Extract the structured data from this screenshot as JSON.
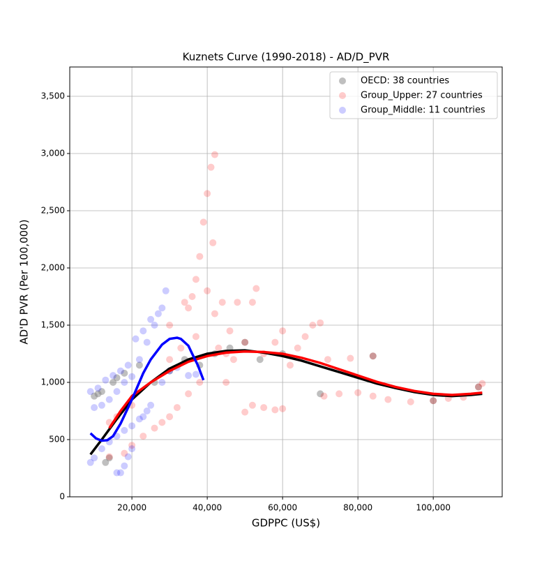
{
  "chart_data": {
    "type": "scatter",
    "title": "Kuznets Curve (1990-2018) - AD/D_PVR",
    "x_label": "GDPPC (US$)",
    "y_label": "AD'D PVR (Per 100,000)",
    "xlim": [
      3500,
      118300
    ],
    "ylim": [
      0,
      3756
    ],
    "xticks": [
      {
        "value": 20000,
        "label": "20,000"
      },
      {
        "value": 40000,
        "label": "40,000"
      },
      {
        "value": 60000,
        "label": "60,000"
      },
      {
        "value": 80000,
        "label": "80,000"
      },
      {
        "value": 100000,
        "label": "100,000"
      }
    ],
    "yticks": [
      0,
      500,
      {
        "value": 1000,
        "label": "1,000"
      },
      {
        "value": 1500,
        "label": "1,500"
      },
      {
        "value": 2000,
        "label": "2,000"
      },
      {
        "value": 2500,
        "label": "2,500"
      },
      {
        "value": 3000,
        "label": "3,000"
      },
      {
        "value": 3500,
        "label": "3,500"
      }
    ],
    "grid": true,
    "legend": "upper-right",
    "series": [
      {
        "name": "OECD: 38 countries",
        "color": "#808080",
        "x": [
          10000,
          11000,
          12000,
          13000,
          14000,
          15000,
          16000,
          18000,
          22000,
          26000,
          30000,
          34000,
          38000,
          42000,
          46000,
          50000,
          54000,
          60000,
          70000,
          84000,
          100000,
          112000
        ],
        "values": [
          880,
          900,
          920,
          300,
          340,
          1000,
          1040,
          1080,
          1150,
          1000,
          1100,
          1200,
          1150,
          1250,
          1300,
          1350,
          1200,
          1250,
          900,
          1230,
          840,
          960
        ]
      },
      {
        "name": "Group_Upper: 27 countries",
        "color": "#ff0000",
        "x": [
          14000,
          16000,
          18000,
          20000,
          14000,
          18000,
          20000,
          23000,
          26000,
          28000,
          30000,
          32000,
          35000,
          35000,
          37000,
          38000,
          39000,
          40000,
          41000,
          42000,
          41500,
          40000,
          36000,
          42000,
          44000,
          46000,
          48000,
          50000,
          52000,
          53000,
          45000,
          47000,
          50000,
          52000,
          55000,
          58000,
          60000,
          55000,
          58000,
          60000,
          62000,
          64000,
          66000,
          68000,
          70000,
          71000,
          72000,
          75000,
          78000,
          80000,
          84000,
          84000,
          88000,
          94000,
          100000,
          104000,
          108000,
          112000,
          113000,
          43000,
          45000,
          38000,
          30000,
          33000,
          30000,
          34000,
          37000
        ],
        "values": [
          650,
          700,
          760,
          800,
          350,
          380,
          450,
          530,
          600,
          650,
          700,
          780,
          900,
          1650,
          1900,
          2100,
          2400,
          2650,
          2880,
          2990,
          2220,
          1800,
          1750,
          1600,
          1700,
          1450,
          1700,
          1350,
          1700,
          1820,
          1000,
          1200,
          740,
          800,
          780,
          760,
          770,
          1250,
          1350,
          1450,
          1150,
          1300,
          1400,
          1500,
          1520,
          880,
          1200,
          900,
          1210,
          910,
          1230,
          880,
          850,
          830,
          840,
          860,
          870,
          960,
          990,
          1300,
          1250,
          1000,
          1200,
          1300,
          1500,
          1700,
          1400
        ]
      },
      {
        "name": "Group_Middle: 11 countries",
        "color": "#0000ff",
        "x": [
          9000,
          11000,
          13000,
          15000,
          17000,
          19000,
          10000,
          12000,
          14000,
          16000,
          18000,
          20000,
          22000,
          24000,
          26000,
          28000,
          29000,
          21000,
          23000,
          25000,
          27000,
          9000,
          10000,
          12000,
          14000,
          16000,
          18000,
          20000,
          22000,
          24000,
          16000,
          17000,
          18000,
          19000,
          20000,
          30000,
          32000,
          35000,
          37000,
          28000,
          25000,
          23000
        ],
        "values": [
          920,
          950,
          1020,
          1060,
          1100,
          1150,
          780,
          800,
          850,
          920,
          1000,
          1050,
          1200,
          1350,
          1500,
          1650,
          1800,
          1380,
          1450,
          1550,
          1600,
          300,
          340,
          420,
          480,
          530,
          580,
          620,
          680,
          750,
          210,
          210,
          270,
          350,
          420,
          1100,
          1130,
          1060,
          1070,
          1000,
          800,
          700
        ]
      }
    ],
    "fits": [
      {
        "color": "#000000",
        "x": [
          9000,
          12000,
          16000,
          20000,
          25000,
          30000,
          35000,
          40000,
          45000,
          50000,
          55000,
          60000,
          65000,
          70000,
          75000,
          80000,
          85000,
          90000,
          95000,
          100000,
          105000,
          110000,
          113000
        ],
        "values": [
          370,
          500,
          680,
          850,
          1000,
          1120,
          1200,
          1250,
          1275,
          1280,
          1260,
          1230,
          1190,
          1140,
          1090,
          1040,
          990,
          950,
          915,
          890,
          880,
          890,
          900
        ]
      },
      {
        "color": "#ff0000",
        "x": [
          14000,
          17000,
          20000,
          25000,
          30000,
          35000,
          40000,
          45000,
          50000,
          55000,
          60000,
          65000,
          70000,
          75000,
          80000,
          85000,
          90000,
          95000,
          100000,
          105000,
          110000,
          113000
        ],
        "values": [
          600,
          750,
          880,
          1000,
          1100,
          1180,
          1230,
          1260,
          1270,
          1265,
          1250,
          1215,
          1170,
          1115,
          1060,
          1005,
          960,
          925,
          900,
          890,
          900,
          910
        ]
      },
      {
        "color": "#0000ff",
        "x": [
          9000,
          10500,
          12000,
          13500,
          15000,
          17000,
          20000,
          23000,
          25000,
          28000,
          30000,
          32000,
          33000,
          35000,
          36000,
          37500,
          39000
        ],
        "values": [
          555,
          510,
          490,
          495,
          530,
          640,
          850,
          1080,
          1200,
          1330,
          1380,
          1390,
          1380,
          1320,
          1250,
          1150,
          1020
        ]
      }
    ]
  }
}
